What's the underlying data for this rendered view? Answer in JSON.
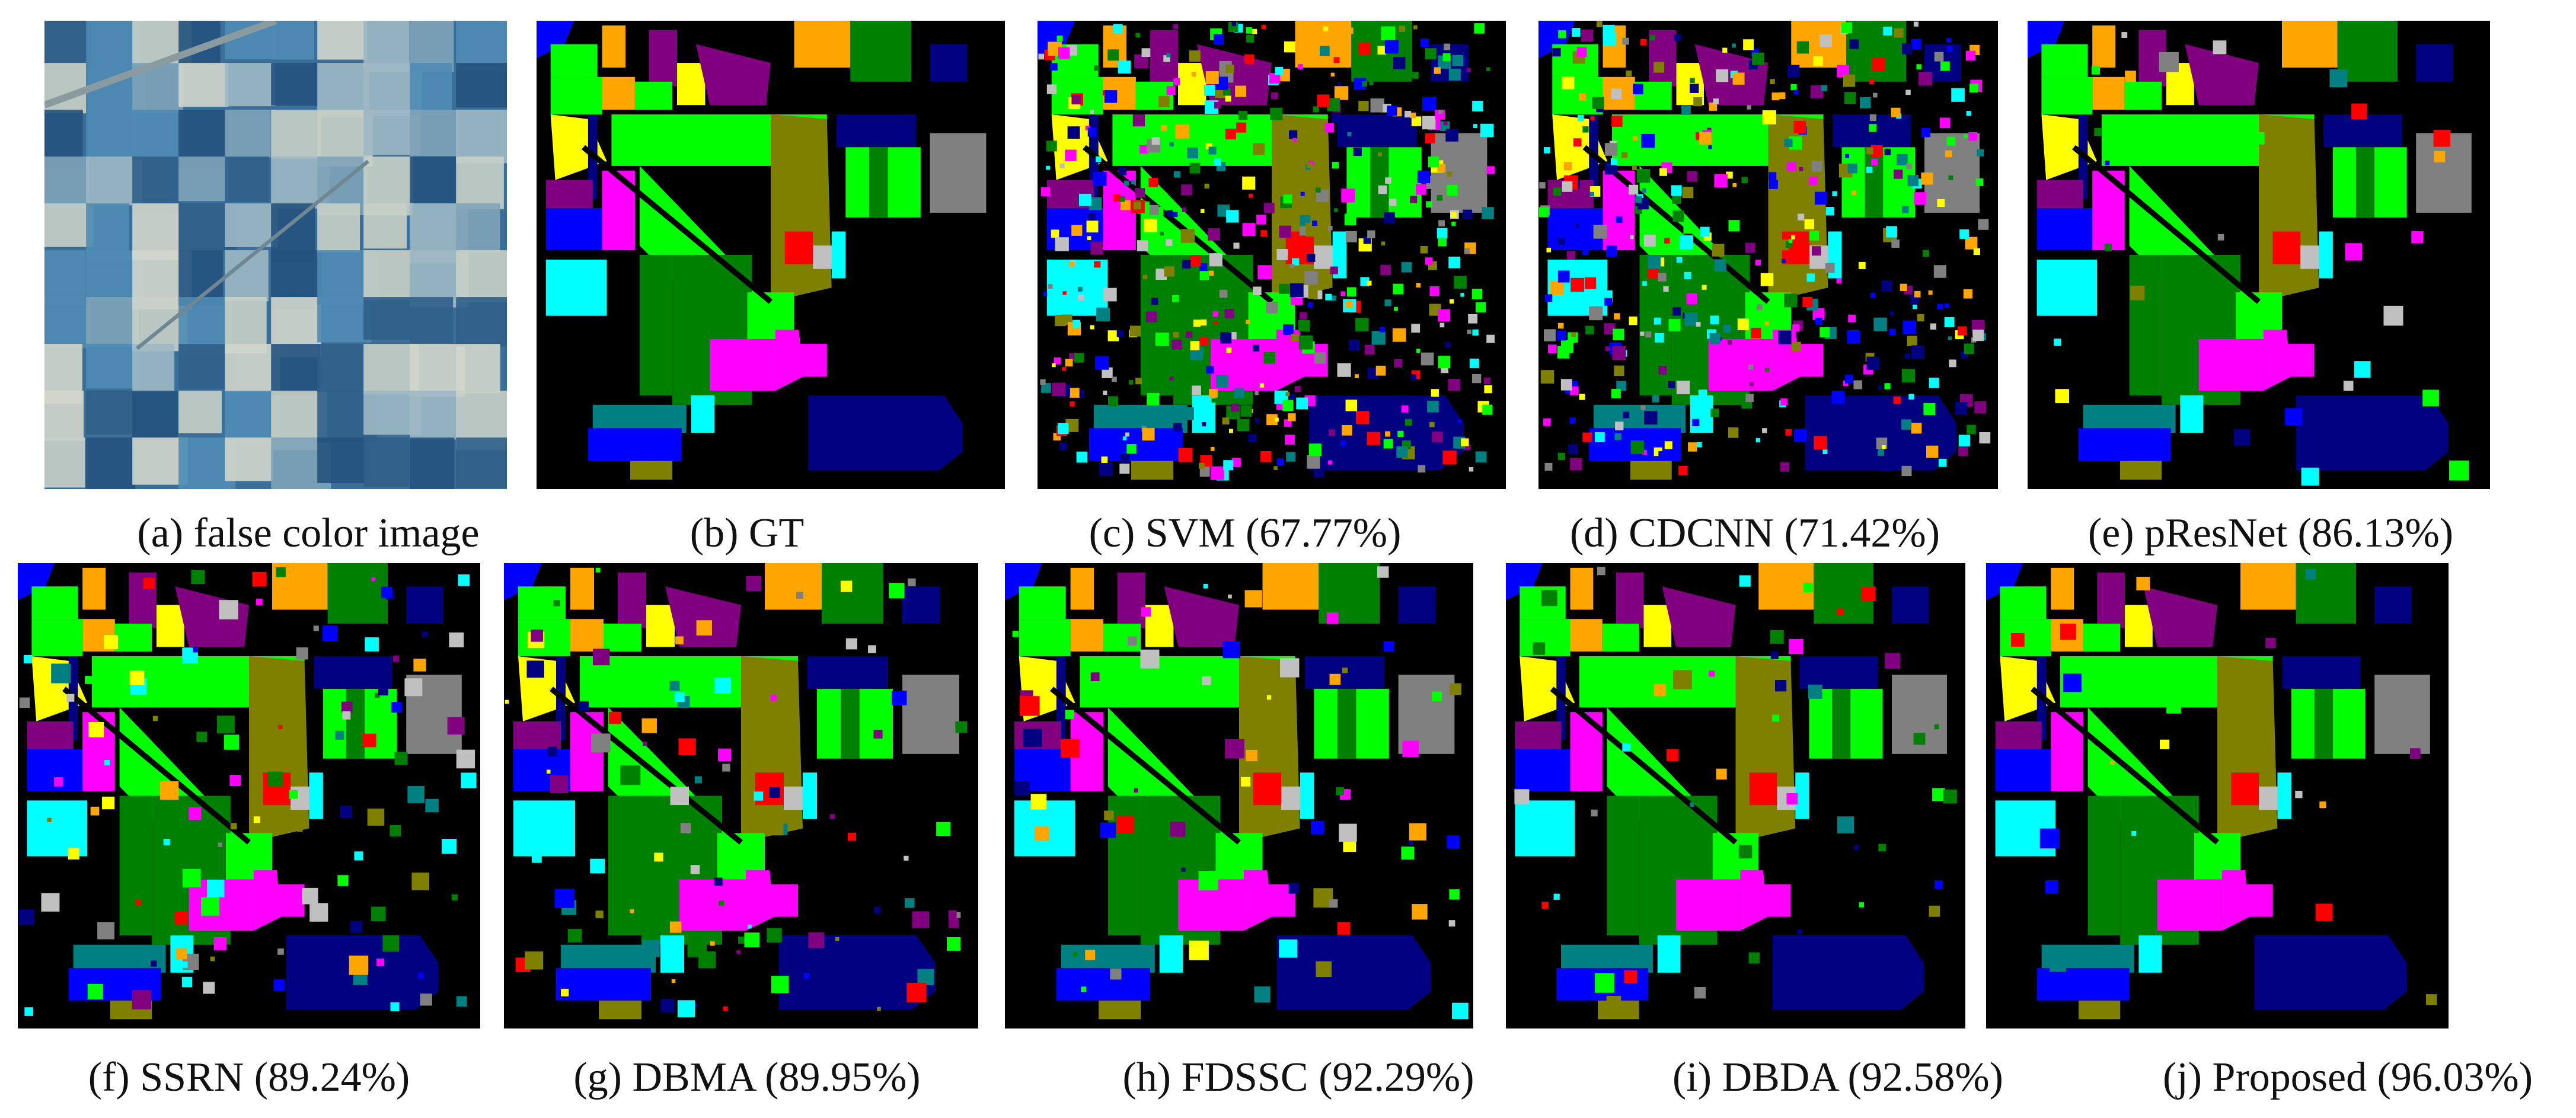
{
  "figure": {
    "panels": [
      {
        "id": "a",
        "caption": "(a) false color image",
        "kind": "false-color"
      },
      {
        "id": "b",
        "caption": "(b) GT",
        "kind": "ground-truth"
      },
      {
        "id": "c",
        "caption": "(c) SVM (67.77%)",
        "kind": "map",
        "noise": 0.55
      },
      {
        "id": "d",
        "caption": "(d) CDCNN (71.42%)",
        "kind": "map",
        "noise": 0.45
      },
      {
        "id": "e",
        "caption": "(e) pResNet (86.13%)",
        "kind": "map",
        "noise": 0.03
      },
      {
        "id": "f",
        "caption": "(f) SSRN (89.24%)",
        "kind": "map",
        "noise": 0.12
      },
      {
        "id": "g",
        "caption": "(g) DBMA (89.95%)",
        "kind": "map",
        "noise": 0.1
      },
      {
        "id": "h",
        "caption": "(h) FDSSC (92.29%)",
        "kind": "map",
        "noise": 0.07
      },
      {
        "id": "i",
        "caption": "(i) DBDA (92.58%)",
        "kind": "map",
        "noise": 0.05
      },
      {
        "id": "j",
        "caption": "(j) Proposed (96.03%)",
        "kind": "map",
        "noise": 0.02
      }
    ]
  },
  "colors": {
    "background": "#000000",
    "classes": [
      "#0000ff",
      "#00ff00",
      "#008000",
      "#ff00ff",
      "#ffa500",
      "#800080",
      "#ffff00",
      "#00ffff",
      "#808000",
      "#000080",
      "#808080",
      "#ff0000",
      "#008080",
      "#c0c0c0"
    ]
  }
}
